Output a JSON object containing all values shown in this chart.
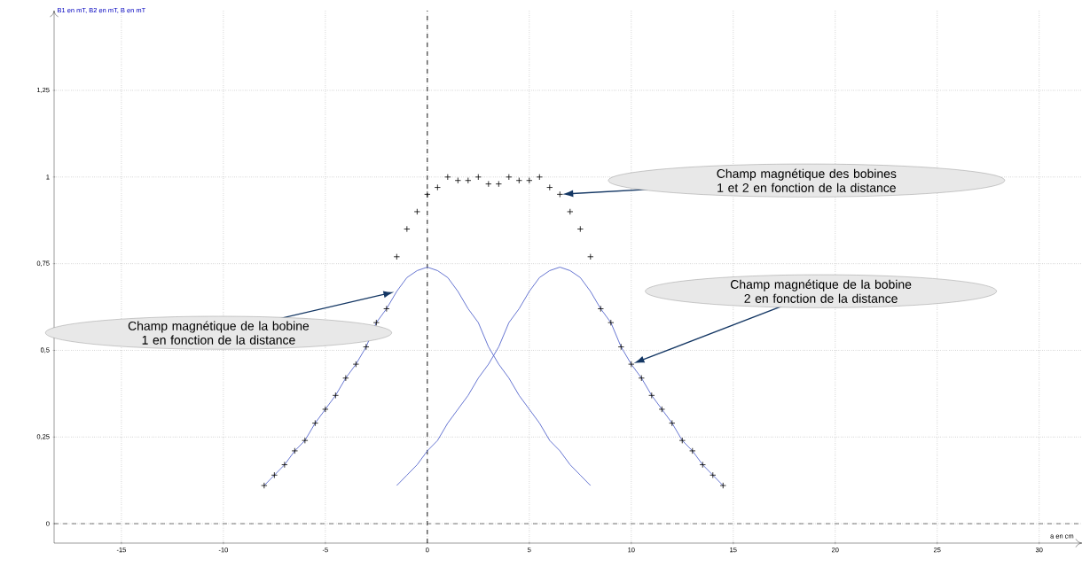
{
  "chart_data": {
    "type": "line",
    "xlabel": "a en cm",
    "ylabel": "B1 en mT, B2 en mT, B en mT",
    "xlim": [
      -18.3,
      32.1
    ],
    "ylim": [
      -0.056,
      1.48
    ],
    "xticks": [
      -15,
      -10,
      -5,
      0,
      5,
      10,
      15,
      20,
      25,
      30
    ],
    "yticks": [
      0,
      {
        "value": 0.25,
        "label": "0,25"
      },
      {
        "value": 0.5,
        "label": "0,5"
      },
      {
        "value": 0.75,
        "label": "0,75"
      },
      1,
      {
        "value": 1.25,
        "label": "1,25"
      }
    ],
    "grid": true,
    "series": [
      {
        "color": "#5566cc",
        "marker": "none",
        "x": [
          -8,
          -7.5,
          -7,
          -6.5,
          -6,
          -5.5,
          -5,
          -4.5,
          -4,
          -3.5,
          -3,
          -2.5,
          -2,
          -1.5,
          -1,
          -0.5,
          0,
          0.5,
          1,
          1.5,
          2,
          2.5,
          3,
          3.5,
          4,
          4.5,
          5,
          5.5,
          6,
          6.5,
          7,
          7.5,
          8
        ],
        "values": [
          0.11,
          0.14,
          0.17,
          0.21,
          0.24,
          0.29,
          0.33,
          0.37,
          0.42,
          0.46,
          0.51,
          0.58,
          0.62,
          0.67,
          0.71,
          0.73,
          0.74,
          0.73,
          0.71,
          0.67,
          0.62,
          0.58,
          0.51,
          0.46,
          0.42,
          0.37,
          0.33,
          0.29,
          0.24,
          0.21,
          0.17,
          0.14,
          0.11
        ]
      },
      {
        "color": "#5566cc",
        "marker": "none",
        "x": [
          -1.5,
          -1,
          -0.5,
          0,
          0.5,
          1,
          1.5,
          2,
          2.5,
          3,
          3.5,
          4,
          4.5,
          5,
          5.5,
          6,
          6.5,
          7,
          7.5,
          8,
          8.5,
          9,
          9.5,
          10,
          10.5,
          11,
          11.5,
          12,
          12.5,
          13,
          13.5,
          14,
          14.5
        ],
        "values": [
          0.11,
          0.14,
          0.17,
          0.21,
          0.24,
          0.29,
          0.33,
          0.37,
          0.42,
          0.46,
          0.51,
          0.58,
          0.62,
          0.67,
          0.71,
          0.73,
          0.74,
          0.73,
          0.71,
          0.67,
          0.62,
          0.58,
          0.51,
          0.46,
          0.42,
          0.37,
          0.33,
          0.29,
          0.24,
          0.21,
          0.17,
          0.14,
          0.11
        ]
      },
      {
        "type": "scatter",
        "color": "#000000",
        "marker": "cross",
        "x": [
          -8,
          -7.5,
          -7,
          -6.5,
          -6,
          -5.5,
          -5,
          -4.5,
          -4,
          -3.5,
          -3,
          -2.5,
          -2,
          -1.5,
          -1,
          -0.5,
          0,
          0.5,
          1,
          1.5,
          2,
          2.5,
          3,
          3.5,
          4,
          4.5,
          5,
          5.5,
          6,
          6.5,
          7,
          7.5,
          8,
          8.5,
          9,
          9.5,
          10,
          10.5,
          11,
          11.5,
          12,
          12.5,
          13,
          13.5,
          14,
          14.5
        ],
        "values": [
          0.11,
          0.14,
          0.17,
          0.21,
          0.24,
          0.29,
          0.33,
          0.37,
          0.42,
          0.46,
          0.51,
          0.58,
          0.62,
          0.77,
          0.85,
          0.9,
          0.95,
          0.97,
          1.0,
          0.99,
          0.99,
          1.0,
          0.98,
          0.98,
          1.0,
          0.99,
          0.99,
          1.0,
          0.97,
          0.95,
          0.9,
          0.85,
          0.77,
          0.62,
          0.58,
          0.51,
          0.46,
          0.42,
          0.37,
          0.33,
          0.29,
          0.24,
          0.21,
          0.17,
          0.14,
          0.11
        ]
      }
    ],
    "ref_lines": [
      {
        "axis": "x",
        "value": 0,
        "line_style": "dashed",
        "color": "#000000"
      },
      {
        "axis": "y",
        "value": 0,
        "line_style": "dashed",
        "color": "#555555"
      }
    ],
    "annotations": [
      "Champ magnétique de la bobine 1 en fonction de la distance",
      "Champ magnétique des bobines 1 et 2 en fonction de la distance",
      "Champ magnétique de la bobine 2 en fonction de la distance"
    ]
  }
}
